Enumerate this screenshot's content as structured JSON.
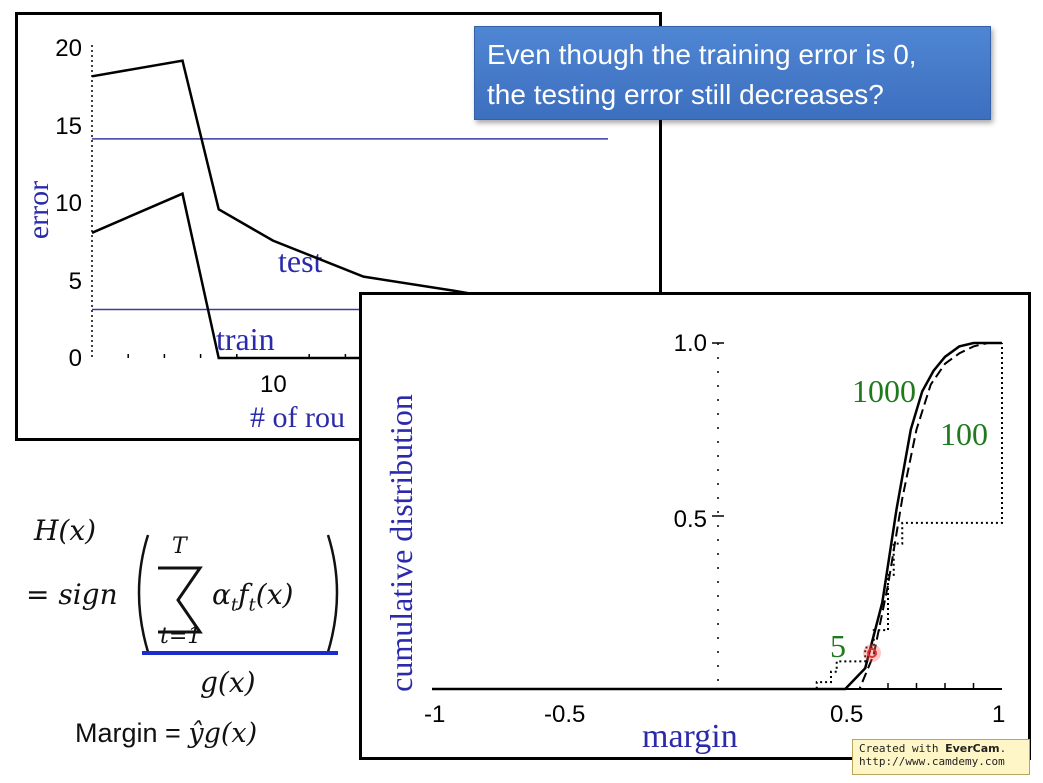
{
  "callout": {
    "line1": "Even though the training error is 0,",
    "line2": "the testing error still decreases?"
  },
  "error_chart": {
    "ylabel": "error",
    "xlabel": "# of rou",
    "yticks": [
      "0",
      "5",
      "10",
      "15",
      "20"
    ],
    "xticks": [
      "10"
    ],
    "label_test": "test",
    "label_train": "train",
    "colors": {
      "curve": "#000000",
      "reference_line": "#3a3aa8",
      "label": "#2a2aaa"
    }
  },
  "margin_chart": {
    "ylabel": "cumulative distribution",
    "xlabel": "margin",
    "xticks": [
      "-1",
      "-0.5",
      "0.5",
      "1"
    ],
    "yticks": [
      "0.5",
      "1.0"
    ],
    "curve_labels": [
      "5",
      "1000",
      "100"
    ],
    "colors": {
      "label": "#2a2aaa",
      "curve_label": "#1f7a1f",
      "cursor": "#e23030"
    }
  },
  "chart_data": [
    {
      "type": "line",
      "ylabel": "error",
      "xlabel": "# of rou",
      "ylim": [
        0,
        20
      ],
      "series": [
        {
          "name": "test",
          "x": [
            0,
            5,
            7,
            10,
            15,
            20,
            24,
            28,
            33
          ],
          "values": [
            18,
            19,
            9.5,
            7.5,
            5.2,
            4.3,
            3.5,
            3.2,
            3.1
          ]
        },
        {
          "name": "train",
          "x": [
            0,
            5,
            7,
            10,
            20,
            33
          ],
          "values": [
            8,
            10.5,
            0,
            0,
            0,
            0
          ]
        }
      ],
      "reference_lines": [
        14,
        3.1
      ]
    },
    {
      "type": "line",
      "ylabel": "cumulative distribution",
      "xlabel": "margin",
      "xlim": [
        -1,
        1
      ],
      "ylim": [
        0,
        1
      ],
      "series": [
        {
          "name": "5",
          "x": [
            -1,
            0.3,
            0.35,
            0.4,
            0.42,
            0.45,
            0.5,
            0.52,
            0.55,
            0.6,
            0.62,
            0.65,
            0.68,
            0.7,
            1.0,
            1.0
          ],
          "values": [
            0,
            0,
            0.02,
            0.05,
            0.08,
            0.08,
            0.08,
            0.12,
            0.17,
            0.33,
            0.42,
            0.48,
            0.48,
            0.48,
            0.48,
            1.0
          ]
        },
        {
          "name": "100",
          "x": [
            -1,
            0.5,
            0.55,
            0.6,
            0.65,
            0.7,
            0.75,
            0.8,
            0.85,
            0.9,
            0.95,
            1.0
          ],
          "values": [
            0,
            0,
            0.1,
            0.3,
            0.55,
            0.75,
            0.88,
            0.94,
            0.97,
            0.99,
            1.0,
            1.0
          ]
        },
        {
          "name": "1000",
          "x": [
            -1,
            0.45,
            0.52,
            0.58,
            0.63,
            0.68,
            0.72,
            0.76,
            0.8,
            0.85,
            0.9,
            0.95,
            1.0
          ],
          "values": [
            0,
            0,
            0.06,
            0.25,
            0.52,
            0.75,
            0.86,
            0.92,
            0.96,
            0.99,
            1.0,
            1.0,
            1.0
          ]
        }
      ]
    }
  ],
  "formula": {
    "lhs": "H(x)",
    "equals_sign": "= sign",
    "sum_top": "T",
    "sum_bottom": "t=1",
    "summand": "α",
    "summand_sub": "t",
    "summand_f": "f",
    "summand_f_sub": "t",
    "summand_arg": "(x)",
    "g": "g(x)",
    "margin_label": "Margin = ",
    "margin_expr": "ŷg(x)"
  },
  "watermark": {
    "prefix": "Created with ",
    "brand": "EverCam",
    "suffix": ".",
    "url": "http://www.camdemy.com"
  }
}
